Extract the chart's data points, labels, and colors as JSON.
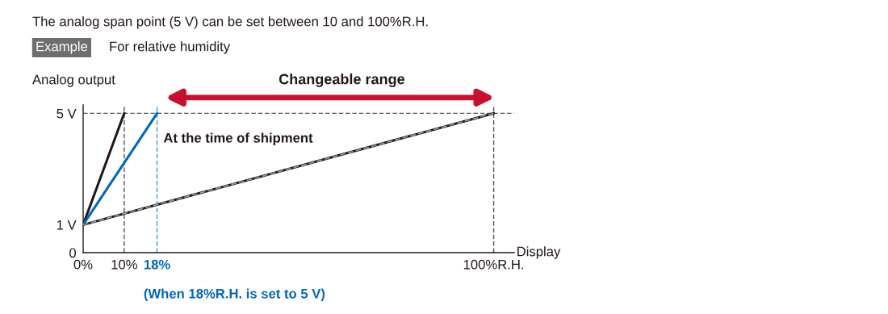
{
  "chart_data": {
    "type": "line",
    "title": "The analog span point (5 V) can be set between 10 and 100%R.H.",
    "subtitle": "For relative humidity",
    "xlabel": "Display",
    "ylabel": "Analog output",
    "series": [
      {
        "x": [
          0,
          10
        ],
        "values": [
          1,
          5
        ],
        "color": "#231815",
        "line_style": "solid"
      },
      {
        "x": [
          0,
          18
        ],
        "values": [
          1,
          5
        ],
        "color": "#0068b7",
        "line_style": "solid"
      },
      {
        "x": [
          0,
          100
        ],
        "values": [
          1,
          5
        ],
        "color": "#231815",
        "line_style": "solid"
      },
      {
        "name": "At the time of shipment",
        "x": [
          0,
          100
        ],
        "values": [
          1,
          5
        ],
        "color": "#9a9a9a",
        "line_style": "dashed"
      }
    ],
    "xlim": [
      0,
      105
    ],
    "ylim": [
      0,
      5.3
    ],
    "xticks": [
      {
        "value": 0,
        "label": "0%"
      },
      {
        "value": 10,
        "label": "10%"
      },
      {
        "value": 18,
        "label": "18%"
      },
      {
        "value": 100,
        "label": "100%R.H."
      }
    ],
    "yticks": [
      {
        "value": 0,
        "label": "0"
      },
      {
        "value": 1,
        "label": "1 V"
      },
      {
        "value": 5,
        "label": "5 V"
      }
    ],
    "ref_lines": [
      {
        "axis": "y",
        "value": 5,
        "color": "#555555",
        "line_style": "dashed"
      },
      {
        "axis": "x",
        "value": 10,
        "color": "#555555",
        "line_style": "dashed"
      },
      {
        "axis": "x",
        "value": 18,
        "color": "#3a9ad9",
        "line_style": "dashed"
      },
      {
        "axis": "x",
        "value": 100,
        "color": "#555555",
        "line_style": "dashed"
      }
    ],
    "annotations": [
      "Example",
      "Changeable range",
      {
        "text": "(When 18%R.H. is set to 5 V)",
        "x": 18,
        "y": 0
      }
    ],
    "legend": false,
    "grid": false,
    "marker": "none"
  }
}
